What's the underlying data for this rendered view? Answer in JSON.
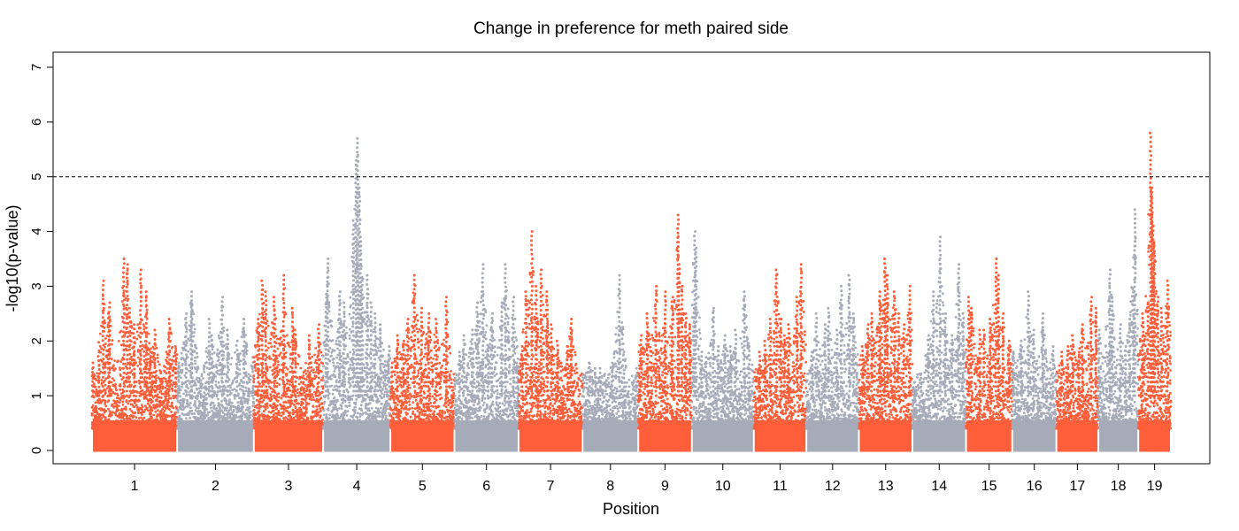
{
  "chart_data": {
    "type": "scatter",
    "title": "Change in preference for meth paired side",
    "xlabel": "Position",
    "ylabel": "-log10(p-value)",
    "ylim": [
      0,
      7
    ],
    "yticks": [
      0,
      1,
      2,
      3,
      4,
      5,
      6,
      7
    ],
    "threshold": 5,
    "grid": false,
    "legend": "none",
    "colors": {
      "odd": "#ff5e3a",
      "even": "#a6abb9"
    },
    "chromosomes": [
      {
        "label": "1",
        "start": 0.0,
        "end": 162.0,
        "points": [
          [
            1.6,
            1.6
          ],
          [
            12.8,
            1.8
          ],
          [
            21.4,
            3.1
          ],
          [
            31.5,
            2.5
          ],
          [
            33.2,
            2.7
          ],
          [
            60.5,
            3.5
          ],
          [
            67.1,
            3.4
          ],
          [
            72.3,
            2.6
          ],
          [
            80.0,
            2.3
          ],
          [
            92.6,
            3.3
          ],
          [
            103.7,
            2.9
          ],
          [
            110.7,
            1.8
          ],
          [
            119.8,
            2.2
          ],
          [
            147.4,
            2.4
          ],
          [
            159.2,
            1.9
          ]
        ]
      },
      {
        "label": "2",
        "start": 162.0,
        "end": 308.0,
        "points": [
          [
            164.7,
            1.6
          ],
          [
            178.8,
            2.5
          ],
          [
            188.8,
            2.7
          ],
          [
            190.1,
            2.9
          ],
          [
            223.4,
            2.4
          ],
          [
            228.5,
            2.1
          ],
          [
            247.8,
            2.8
          ],
          [
            258.5,
            2.2
          ],
          [
            276.0,
            2.0
          ],
          [
            288.9,
            2.4
          ],
          [
            306.8,
            1.7
          ]
        ]
      },
      {
        "label": "3",
        "start": 308.0,
        "end": 440.0,
        "points": [
          [
            315.6,
            2.4
          ],
          [
            324.0,
            3.1
          ],
          [
            330.7,
            2.9
          ],
          [
            346.9,
            2.8
          ],
          [
            365.0,
            3.2
          ],
          [
            381.7,
            2.6
          ],
          [
            387.2,
            2.2
          ],
          [
            413.8,
            2.1
          ],
          [
            431.4,
            2.3
          ]
        ]
      },
      {
        "label": "4",
        "start": 440.0,
        "end": 568.0,
        "points": [
          [
            445.6,
            2.7
          ],
          [
            448.9,
            3.5
          ],
          [
            471.4,
            2.9
          ],
          [
            479.8,
            2.7
          ],
          [
            497.5,
            4.2
          ],
          [
            502.6,
            5.3
          ],
          [
            505.7,
            5.7
          ],
          [
            509.1,
            4.8
          ],
          [
            511.4,
            3.9
          ],
          [
            514.3,
            3.1
          ],
          [
            524.1,
            3.2
          ],
          [
            531.3,
            2.7
          ],
          [
            538.9,
            2.5
          ],
          [
            549.4,
            2.3
          ],
          [
            565.4,
            1.9
          ]
        ]
      },
      {
        "label": "5",
        "start": 568.0,
        "end": 690.0,
        "points": [
          [
            571.1,
            1.6
          ],
          [
            581.6,
            2.1
          ],
          [
            592.8,
            2.0
          ],
          [
            601.5,
            2.4
          ],
          [
            614.0,
            3.2
          ],
          [
            627.0,
            2.6
          ],
          [
            640.9,
            2.5
          ],
          [
            655.2,
            2.4
          ],
          [
            674.3,
            2.8
          ]
        ]
      },
      {
        "label": "6",
        "start": 690.0,
        "end": 812.0,
        "points": [
          [
            699.7,
            1.8
          ],
          [
            707.9,
            2.1
          ],
          [
            724.0,
            2.2
          ],
          [
            733.5,
            2.7
          ],
          [
            744.3,
            3.4
          ],
          [
            754.3,
            1.9
          ],
          [
            761.5,
            2.5
          ],
          [
            780.4,
            2.7
          ],
          [
            787.0,
            3.4
          ],
          [
            802.3,
            2.8
          ]
        ]
      },
      {
        "label": "7",
        "start": 812.0,
        "end": 934.0,
        "points": [
          [
            818.5,
            1.9
          ],
          [
            826.4,
            2.9
          ],
          [
            837.4,
            4.0
          ],
          [
            845.7,
            3.0
          ],
          [
            854.7,
            3.3
          ],
          [
            866.7,
            2.9
          ],
          [
            874.6,
            2.3
          ],
          [
            886.1,
            2.0
          ],
          [
            905.6,
            1.9
          ],
          [
            912.1,
            2.4
          ]
        ]
      },
      {
        "label": "8",
        "start": 934.0,
        "end": 1040.0,
        "points": [
          [
            947.2,
            1.6
          ],
          [
            958.3,
            1.5
          ],
          [
            967.6,
            1.5
          ],
          [
            990.5,
            1.6
          ],
          [
            1004.0,
            3.2
          ],
          [
            1013.4,
            1.4
          ],
          [
            1036.9,
            1.5
          ]
        ]
      },
      {
        "label": "9",
        "start": 1040.0,
        "end": 1142.0,
        "points": [
          [
            1045.2,
            2.1
          ],
          [
            1057.2,
            2.5
          ],
          [
            1073.6,
            3.0
          ],
          [
            1091.3,
            2.9
          ],
          [
            1105.0,
            2.8
          ],
          [
            1115.5,
            4.3
          ],
          [
            1117.8,
            3.4
          ],
          [
            1123.2,
            3.0
          ],
          [
            1130.8,
            2.5
          ],
          [
            1138.2,
            2.3
          ]
        ]
      },
      {
        "label": "10",
        "start": 1142.0,
        "end": 1260.0,
        "points": [
          [
            1145.6,
            2.6
          ],
          [
            1147.5,
            4.0
          ],
          [
            1149.7,
            3.7
          ],
          [
            1160.5,
            1.8
          ],
          [
            1169.3,
            1.7
          ],
          [
            1182.8,
            2.6
          ],
          [
            1191.8,
            1.9
          ],
          [
            1205.2,
            2.1
          ],
          [
            1216.3,
            1.9
          ],
          [
            1225.4,
            2.2
          ],
          [
            1241.9,
            2.9
          ],
          [
            1251.6,
            1.9
          ]
        ]
      },
      {
        "label": "11",
        "start": 1260.0,
        "end": 1360.0,
        "points": [
          [
            1270.7,
            1.8
          ],
          [
            1281.2,
            2.0
          ],
          [
            1291.7,
            2.4
          ],
          [
            1303.2,
            3.3
          ],
          [
            1311.6,
            2.4
          ],
          [
            1318.2,
            2.1
          ],
          [
            1326.1,
            2.3
          ],
          [
            1342.0,
            2.8
          ],
          [
            1349.7,
            3.4
          ]
        ]
      },
      {
        "label": "12",
        "start": 1360.0,
        "end": 1460.0,
        "points": [
          [
            1370.6,
            1.8
          ],
          [
            1379.3,
            2.5
          ],
          [
            1396.0,
            2.3
          ],
          [
            1402.6,
            2.6
          ],
          [
            1418.2,
            2.2
          ],
          [
            1426.5,
            3.0
          ],
          [
            1441.5,
            3.2
          ],
          [
            1449.8,
            2.5
          ]
        ]
      },
      {
        "label": "13",
        "start": 1460.0,
        "end": 1562.0,
        "points": [
          [
            1466.9,
            1.9
          ],
          [
            1477.3,
            2.3
          ],
          [
            1484.8,
            2.5
          ],
          [
            1499.9,
            2.9
          ],
          [
            1509.7,
            3.5
          ],
          [
            1514.1,
            3.2
          ],
          [
            1527.8,
            2.9
          ],
          [
            1535.8,
            2.5
          ],
          [
            1545.4,
            2.3
          ],
          [
            1557.0,
            3.0
          ]
        ]
      },
      {
        "label": "14",
        "start": 1562.0,
        "end": 1664.0,
        "points": [
          [
            1567.7,
            1.1
          ],
          [
            1578.9,
            1.4
          ],
          [
            1592.6,
            2.1
          ],
          [
            1601.9,
            2.9
          ],
          [
            1614.4,
            3.9
          ],
          [
            1624.6,
            2.5
          ],
          [
            1637.1,
            2.1
          ],
          [
            1649.9,
            3.4
          ],
          [
            1658.6,
            2.5
          ]
        ]
      },
      {
        "label": "15",
        "start": 1664.0,
        "end": 1752.0,
        "points": [
          [
            1669.5,
            2.8
          ],
          [
            1674.2,
            2.6
          ],
          [
            1690.2,
            2.2
          ],
          [
            1698.3,
            2.2
          ],
          [
            1710.2,
            2.4
          ],
          [
            1720.9,
            3.5
          ],
          [
            1725.5,
            3.2
          ],
          [
            1734.6,
            2.5
          ],
          [
            1746.3,
            2.0
          ]
        ]
      },
      {
        "label": "16",
        "start": 1752.0,
        "end": 1836.0,
        "points": [
          [
            1753.9,
            1.8
          ],
          [
            1768.8,
            2.0
          ],
          [
            1782.8,
            2.9
          ],
          [
            1792.6,
            2.2
          ],
          [
            1810.3,
            2.5
          ],
          [
            1829.9,
            1.9
          ]
        ]
      },
      {
        "label": "17",
        "start": 1836.0,
        "end": 1916.0,
        "points": [
          [
            1846.1,
            1.8
          ],
          [
            1857.5,
            1.9
          ],
          [
            1867.1,
            2.1
          ],
          [
            1878.5,
            1.8
          ],
          [
            1885.5,
            2.3
          ],
          [
            1902.4,
            2.8
          ],
          [
            1911.8,
            2.6
          ]
        ]
      },
      {
        "label": "18",
        "start": 1916.0,
        "end": 1992.0,
        "points": [
          [
            1917.1,
            2.2
          ],
          [
            1937.9,
            3.3
          ],
          [
            1941.9,
            2.8
          ],
          [
            1958.3,
            2.3
          ],
          [
            1967.6,
            1.9
          ],
          [
            1975.3,
            2.4
          ],
          [
            1983.1,
            2.9
          ],
          [
            1985.4,
            4.4
          ]
        ]
      },
      {
        "label": "19",
        "start": 1992.0,
        "end": 2054.0,
        "points": [
          [
            2000.6,
            2.5
          ],
          [
            2010.9,
            2.7
          ],
          [
            2015.5,
            5.8
          ],
          [
            2017.4,
            4.8
          ],
          [
            2018.4,
            4.6
          ],
          [
            2020.4,
            4.1
          ],
          [
            2022.7,
            3.8
          ],
          [
            2029.2,
            2.8
          ],
          [
            2036.0,
            2.6
          ],
          [
            2047.9,
            3.1
          ]
        ]
      }
    ]
  }
}
